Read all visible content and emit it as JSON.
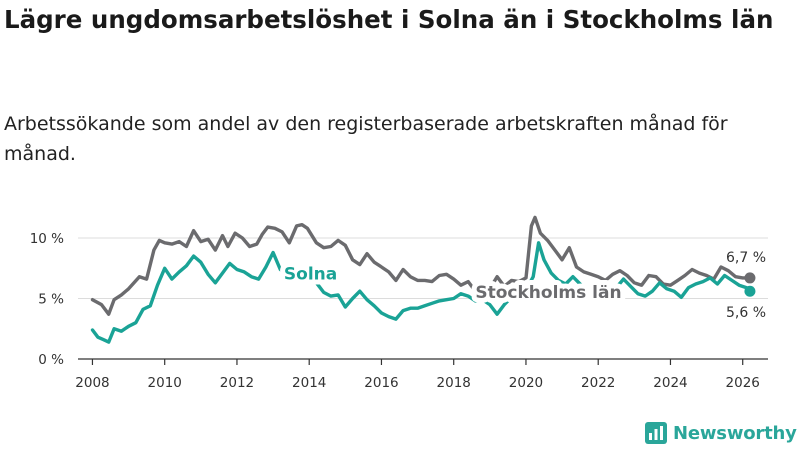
{
  "title": "Lägre ungdomsarbetslöshet i Solna än i Stockholms län",
  "subtitle": "Arbetssökande som andel av den registerbaserade arbetskraften månad för månad.",
  "brand": {
    "name": "Newsworthy",
    "icon": "newsworthy-logo-icon"
  },
  "colors": {
    "solna": "#1aa396",
    "stockholm": "#6b6b6e",
    "grid": "#dcdcdc",
    "axis": "#333333",
    "brand": "#2aa69a"
  },
  "chart_data": {
    "type": "line",
    "title": "Lägre ungdomsarbetslöshet i Solna än i Stockholms län",
    "xlabel": "",
    "ylabel": "",
    "xlim": [
      2007.6,
      2026.7
    ],
    "ylim": [
      0,
      12
    ],
    "grid": true,
    "yticks": [
      {
        "value": 0,
        "label": "0 %"
      },
      {
        "value": 5,
        "label": "5 %"
      },
      {
        "value": 10,
        "label": "10 %"
      }
    ],
    "xticks": [
      {
        "value": 2008,
        "label": "2008"
      },
      {
        "value": 2010,
        "label": "2010"
      },
      {
        "value": 2012,
        "label": "2012"
      },
      {
        "value": 2014,
        "label": "2014"
      },
      {
        "value": 2016,
        "label": "2016"
      },
      {
        "value": 2018,
        "label": "2018"
      },
      {
        "value": 2020,
        "label": "2020"
      },
      {
        "value": 2022,
        "label": "2022"
      },
      {
        "value": 2024,
        "label": "2024"
      },
      {
        "value": 2026,
        "label": "2026"
      }
    ],
    "series": [
      {
        "name": "Stockholms län",
        "key": "stockholm",
        "end_label": "6,7 %",
        "x": [
          2008.0,
          2008.25,
          2008.45,
          2008.6,
          2008.8,
          2009.0,
          2009.3,
          2009.5,
          2009.7,
          2009.85,
          2010.0,
          2010.2,
          2010.4,
          2010.6,
          2010.8,
          2011.0,
          2011.2,
          2011.4,
          2011.6,
          2011.75,
          2011.95,
          2012.15,
          2012.35,
          2012.55,
          2012.7,
          2012.85,
          2013.05,
          2013.25,
          2013.45,
          2013.65,
          2013.8,
          2013.95,
          2014.2,
          2014.4,
          2014.6,
          2014.8,
          2015.0,
          2015.2,
          2015.4,
          2015.6,
          2015.8,
          2016.0,
          2016.2,
          2016.4,
          2016.6,
          2016.8,
          2017.0,
          2017.2,
          2017.4,
          2017.6,
          2017.8,
          2018.0,
          2018.2,
          2018.4,
          2018.6,
          2018.8,
          2019.0,
          2019.2,
          2019.4,
          2019.6,
          2019.8,
          2020.0,
          2020.15,
          2020.25,
          2020.4,
          2020.6,
          2020.8,
          2021.0,
          2021.2,
          2021.4,
          2021.6,
          2021.8,
          2022.0,
          2022.2,
          2022.4,
          2022.6,
          2022.8,
          2023.0,
          2023.2,
          2023.4,
          2023.6,
          2023.8,
          2024.0,
          2024.2,
          2024.4,
          2024.6,
          2024.8,
          2025.0,
          2025.2,
          2025.4,
          2025.6,
          2025.8,
          2026.0,
          2026.2
        ],
        "values": [
          4.9,
          4.5,
          3.7,
          4.9,
          5.3,
          5.8,
          6.8,
          6.6,
          9.0,
          9.8,
          9.6,
          9.5,
          9.7,
          9.3,
          10.6,
          9.7,
          9.9,
          9.0,
          10.2,
          9.3,
          10.4,
          10.0,
          9.3,
          9.5,
          10.3,
          10.9,
          10.8,
          10.5,
          9.6,
          11.0,
          11.1,
          10.8,
          9.6,
          9.2,
          9.3,
          9.8,
          9.4,
          8.2,
          7.8,
          8.7,
          8.0,
          7.6,
          7.2,
          6.5,
          7.4,
          6.8,
          6.5,
          6.5,
          6.4,
          6.9,
          7.0,
          6.6,
          6.1,
          6.4,
          5.6,
          6.3,
          5.8,
          6.8,
          6.0,
          6.5,
          6.4,
          6.7,
          11.0,
          11.7,
          10.4,
          9.8,
          9.0,
          8.2,
          9.2,
          7.6,
          7.2,
          7.0,
          6.8,
          6.5,
          7.0,
          7.3,
          6.9,
          6.3,
          6.1,
          6.9,
          6.8,
          6.2,
          6.1,
          6.5,
          6.9,
          7.4,
          7.1,
          6.9,
          6.6,
          7.6,
          7.3,
          6.8,
          6.7,
          6.7
        ]
      },
      {
        "name": "Solna",
        "key": "solna",
        "end_label": "5,6 %",
        "x": [
          2008.0,
          2008.15,
          2008.3,
          2008.45,
          2008.6,
          2008.8,
          2009.0,
          2009.2,
          2009.4,
          2009.6,
          2009.8,
          2010.0,
          2010.2,
          2010.4,
          2010.6,
          2010.8,
          2011.0,
          2011.2,
          2011.4,
          2011.6,
          2011.8,
          2012.0,
          2012.2,
          2012.4,
          2012.6,
          2012.8,
          2013.0,
          2013.2,
          2013.4,
          2013.6,
          2013.8,
          2014.0,
          2014.2,
          2014.4,
          2014.6,
          2014.8,
          2015.0,
          2015.2,
          2015.4,
          2015.6,
          2015.8,
          2016.0,
          2016.2,
          2016.4,
          2016.6,
          2016.8,
          2017.0,
          2017.2,
          2017.4,
          2017.6,
          2017.8,
          2018.0,
          2018.2,
          2018.4,
          2018.6,
          2018.8,
          2019.0,
          2019.2,
          2019.4,
          2019.6,
          2019.8,
          2020.0,
          2020.2,
          2020.35,
          2020.5,
          2020.7,
          2020.9,
          2021.1,
          2021.3,
          2021.5,
          2021.7,
          2021.9,
          2022.1,
          2022.3,
          2022.5,
          2022.7,
          2022.9,
          2023.1,
          2023.3,
          2023.5,
          2023.7,
          2023.9,
          2024.1,
          2024.3,
          2024.5,
          2024.7,
          2024.9,
          2025.1,
          2025.3,
          2025.5,
          2025.7,
          2025.9,
          2026.1,
          2026.2
        ],
        "values": [
          2.4,
          1.8,
          1.6,
          1.4,
          2.5,
          2.3,
          2.7,
          3.0,
          4.1,
          4.4,
          6.1,
          7.5,
          6.6,
          7.2,
          7.7,
          8.5,
          8.0,
          7.0,
          6.3,
          7.1,
          7.9,
          7.4,
          7.2,
          6.8,
          6.6,
          7.6,
          8.8,
          7.4,
          6.9,
          6.5,
          7.6,
          7.1,
          6.3,
          5.5,
          5.2,
          5.3,
          4.3,
          5.0,
          5.6,
          4.9,
          4.4,
          3.8,
          3.5,
          3.3,
          4.0,
          4.2,
          4.2,
          4.4,
          4.6,
          4.8,
          4.9,
          5.0,
          5.4,
          5.2,
          4.8,
          4.9,
          4.5,
          3.7,
          4.5,
          5.1,
          5.3,
          5.7,
          6.8,
          9.6,
          8.2,
          7.1,
          6.5,
          6.2,
          6.8,
          6.2,
          5.6,
          5.3,
          5.0,
          5.6,
          5.9,
          6.6,
          6.0,
          5.4,
          5.2,
          5.6,
          6.3,
          5.8,
          5.6,
          5.1,
          5.9,
          6.2,
          6.4,
          6.7,
          6.2,
          6.9,
          6.5,
          6.1,
          5.9,
          5.6
        ]
      }
    ],
    "annotations": [
      {
        "series": "solna",
        "text": "Solna",
        "x": 2013.3
      },
      {
        "series": "stockholm",
        "text": "Stockholms län",
        "x": 2018.6
      }
    ]
  }
}
